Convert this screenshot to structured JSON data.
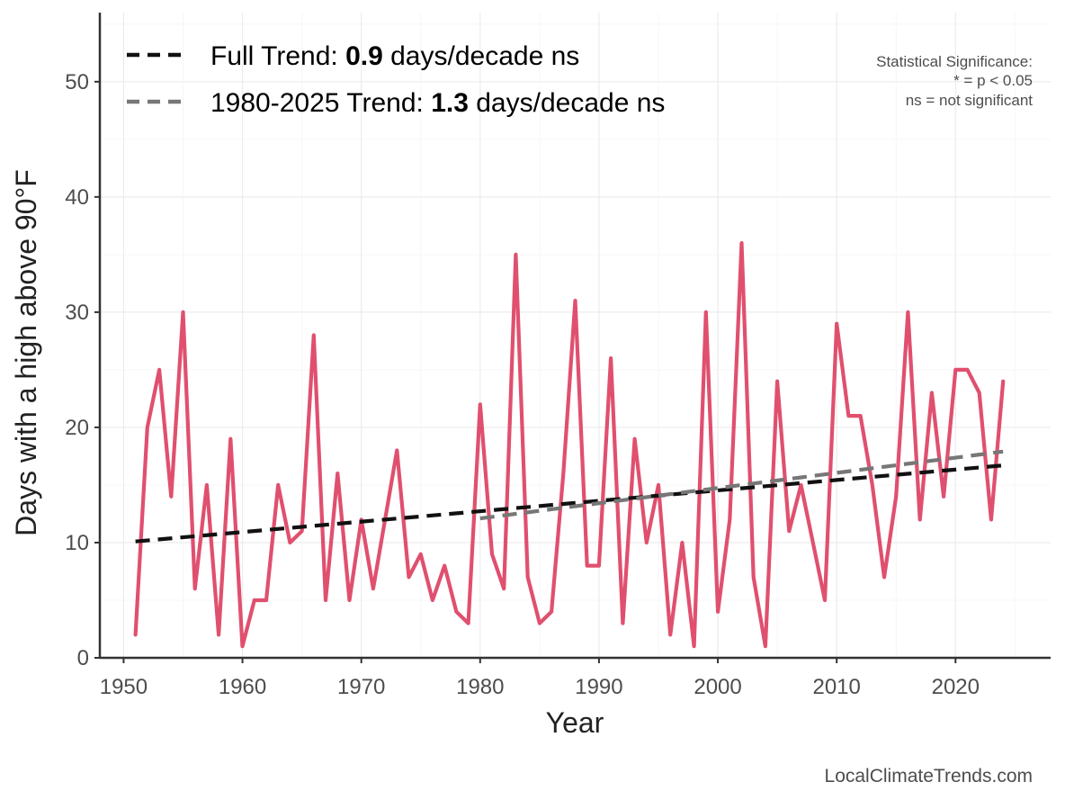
{
  "chart_data": {
    "type": "line",
    "title": "",
    "xlabel": "Year",
    "ylabel": "Days with a high above 90°F",
    "xlim": [
      1948,
      2028
    ],
    "ylim": [
      0,
      56
    ],
    "x_ticks": [
      1950,
      1960,
      1970,
      1980,
      1990,
      2000,
      2010,
      2020
    ],
    "y_ticks": [
      0,
      10,
      20,
      30,
      40,
      50
    ],
    "grid": true,
    "legend_position": "top-left",
    "series": [
      {
        "color": "#e0506e",
        "x": [
          1951,
          1952,
          1953,
          1954,
          1955,
          1956,
          1957,
          1958,
          1959,
          1960,
          1961,
          1962,
          1963,
          1964,
          1965,
          1966,
          1967,
          1968,
          1969,
          1970,
          1971,
          1972,
          1973,
          1974,
          1975,
          1976,
          1977,
          1978,
          1979,
          1980,
          1981,
          1982,
          1983,
          1984,
          1985,
          1986,
          1987,
          1988,
          1989,
          1990,
          1991,
          1992,
          1993,
          1994,
          1995,
          1996,
          1997,
          1998,
          1999,
          2000,
          2001,
          2002,
          2003,
          2004,
          2005,
          2006,
          2007,
          2008,
          2009,
          2010,
          2011,
          2012,
          2013,
          2014,
          2015,
          2016,
          2017,
          2018,
          2019,
          2020,
          2021,
          2022,
          2023,
          2024
        ],
        "values": [
          2,
          20,
          25,
          14,
          30,
          6,
          15,
          2,
          19,
          1,
          5,
          5,
          15,
          10,
          11,
          28,
          5,
          16,
          5,
          12,
          6,
          12,
          18,
          7,
          9,
          5,
          8,
          4,
          3,
          22,
          9,
          6,
          35,
          7,
          3,
          4,
          16,
          31,
          8,
          8,
          26,
          3,
          19,
          10,
          15,
          2,
          10,
          1,
          30,
          4,
          12,
          36,
          7,
          1,
          24,
          11,
          15,
          10,
          5,
          29,
          21,
          21,
          15,
          7,
          14,
          30,
          12,
          23,
          14,
          25,
          25,
          23,
          12,
          24
        ]
      }
    ],
    "trend_lines": [
      {
        "name": "Full Trend",
        "slope_label": "0.9",
        "unit_label": "days/decade ns",
        "color": "#111111",
        "x": [
          1951,
          2024
        ],
        "y": [
          10.1,
          16.7
        ]
      },
      {
        "name": "1980-2025 Trend",
        "slope_label": "1.3",
        "unit_label": "days/decade ns",
        "color": "#777777",
        "x": [
          1980,
          2024
        ],
        "y": [
          12.1,
          17.9
        ]
      }
    ],
    "significance_note": {
      "title": "Statistical Significance:",
      "line1": "* = p < 0.05",
      "line2": "ns = not significant"
    },
    "credit": "LocalClimateTrends.com"
  }
}
